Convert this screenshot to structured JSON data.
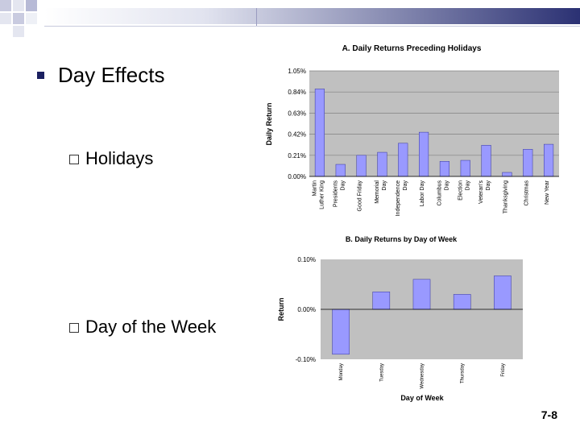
{
  "slide": {
    "title": "Day Effects",
    "subbullets": [
      "Holidays",
      "Day of the Week"
    ],
    "page_number": "7-8"
  },
  "chart_data": [
    {
      "type": "bar",
      "title": "A. Daily Returns Preceding Holidays",
      "ylabel": "Daily Return",
      "xlabel": "",
      "ylim": [
        0,
        1.05
      ],
      "yticks": [
        "0.00%",
        "0.21%",
        "0.42%",
        "0.63%",
        "0.84%",
        "1.05%"
      ],
      "categories": [
        "Martin Luther King",
        "Presidents Day",
        "Good Friday",
        "Memorial Day",
        "Independence Day",
        "Labor Day",
        "Columbus Day",
        "Election Day",
        "Veteran's Day",
        "Thanksgiving",
        "Christmas",
        "New Year"
      ],
      "values": [
        0.87,
        0.12,
        0.21,
        0.24,
        0.33,
        0.44,
        0.15,
        0.16,
        0.31,
        0.04,
        0.27,
        0.32
      ],
      "grid": true,
      "bar_color": "#9999ff",
      "plot_bg": "#c0c0c0"
    },
    {
      "type": "bar",
      "title": "B. Daily Returns by Day of Week",
      "ylabel": "Return",
      "xlabel": "Day of Week",
      "ylim": [
        -0.1,
        0.1
      ],
      "yticks": [
        "-0.10%",
        "0.00%",
        "0.10%"
      ],
      "categories": [
        "Monday",
        "Tuesday",
        "Wednesday",
        "Thursday",
        "Friday"
      ],
      "values": [
        -0.09,
        0.035,
        0.06,
        0.03,
        0.067
      ],
      "grid": false,
      "bar_color": "#9999ff",
      "plot_bg": "#c0c0c0"
    }
  ]
}
